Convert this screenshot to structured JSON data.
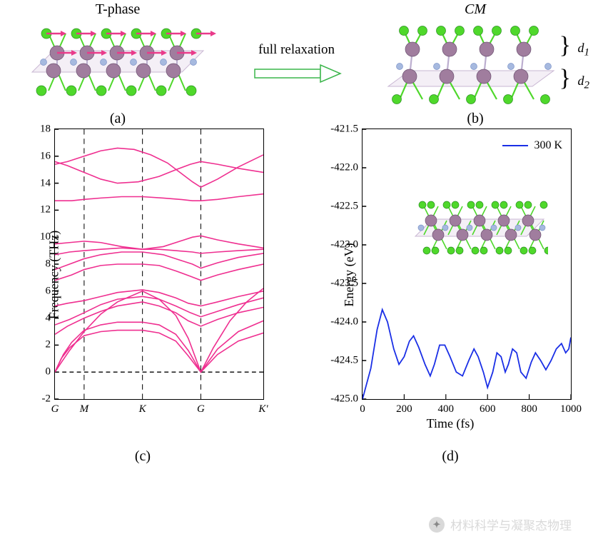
{
  "top": {
    "label_a_title": "T-phase",
    "label_b_title": "CM",
    "label_relaxation": "full relaxation",
    "subfig_a": "(a)",
    "subfig_b": "(b)",
    "d1": "d",
    "d1_sub": "1",
    "d2": "d",
    "d2_sub": "2",
    "atom_colors": {
      "green": "#4fd82b",
      "purple": "#a07d9e",
      "blue": "#a6b9df",
      "arrow": "#e93a8a",
      "relax_arrow_stroke": "#3ab54a"
    }
  },
  "chart_c": {
    "subfig": "(c)",
    "ylabel": "Frequency (THz)",
    "ylim": [
      -2,
      18
    ],
    "yticks": [
      -2,
      0,
      2,
      4,
      6,
      8,
      10,
      12,
      14,
      16,
      18
    ],
    "xticks": [
      {
        "pos": 0.0,
        "label": "G"
      },
      {
        "pos": 0.14,
        "label": "M"
      },
      {
        "pos": 0.42,
        "label": "K"
      },
      {
        "pos": 0.7,
        "label": "G"
      },
      {
        "pos": 1.0,
        "label": "K'"
      }
    ],
    "line_color": "#ef2f90",
    "line_width": 1.6,
    "bands": [
      [
        [
          0,
          0
        ],
        [
          0.03,
          1.0
        ],
        [
          0.07,
          1.8
        ],
        [
          0.14,
          2.7
        ],
        [
          0.22,
          3.0
        ],
        [
          0.3,
          3.1
        ],
        [
          0.42,
          3.1
        ],
        [
          0.5,
          2.9
        ],
        [
          0.58,
          2.3
        ],
        [
          0.64,
          1.2
        ],
        [
          0.7,
          0
        ],
        [
          0.78,
          1.3
        ],
        [
          0.88,
          2.3
        ],
        [
          1.0,
          2.9
        ]
      ],
      [
        [
          0,
          0
        ],
        [
          0.04,
          1.3
        ],
        [
          0.08,
          2.2
        ],
        [
          0.14,
          3.1
        ],
        [
          0.22,
          3.5
        ],
        [
          0.3,
          3.7
        ],
        [
          0.42,
          3.7
        ],
        [
          0.5,
          3.5
        ],
        [
          0.58,
          2.8
        ],
        [
          0.64,
          1.6
        ],
        [
          0.7,
          0
        ],
        [
          0.78,
          1.7
        ],
        [
          0.88,
          3.0
        ],
        [
          1.0,
          3.8
        ]
      ],
      [
        [
          0,
          0
        ],
        [
          0.03,
          0.7
        ],
        [
          0.07,
          1.6
        ],
        [
          0.14,
          3.0
        ],
        [
          0.22,
          4.3
        ],
        [
          0.3,
          5.2
        ],
        [
          0.42,
          6.0
        ],
        [
          0.5,
          5.4
        ],
        [
          0.58,
          4.2
        ],
        [
          0.64,
          2.5
        ],
        [
          0.7,
          0
        ],
        [
          0.76,
          1.8
        ],
        [
          0.84,
          3.8
        ],
        [
          0.92,
          5.2
        ],
        [
          1.0,
          6.2
        ]
      ],
      [
        [
          0,
          2.8
        ],
        [
          0.06,
          3.4
        ],
        [
          0.14,
          4.0
        ],
        [
          0.22,
          4.5
        ],
        [
          0.3,
          4.9
        ],
        [
          0.42,
          5.2
        ],
        [
          0.5,
          4.9
        ],
        [
          0.58,
          4.4
        ],
        [
          0.64,
          3.8
        ],
        [
          0.7,
          3.4
        ],
        [
          0.78,
          3.9
        ],
        [
          0.88,
          4.4
        ],
        [
          1.0,
          4.8
        ]
      ],
      [
        [
          0,
          3.5
        ],
        [
          0.07,
          3.9
        ],
        [
          0.14,
          4.4
        ],
        [
          0.22,
          5.0
        ],
        [
          0.3,
          5.4
        ],
        [
          0.42,
          5.6
        ],
        [
          0.5,
          5.4
        ],
        [
          0.58,
          4.9
        ],
        [
          0.65,
          4.4
        ],
        [
          0.7,
          4.1
        ],
        [
          0.78,
          4.5
        ],
        [
          0.88,
          5.0
        ],
        [
          1.0,
          5.5
        ]
      ],
      [
        [
          0,
          4.9
        ],
        [
          0.06,
          5.1
        ],
        [
          0.14,
          5.3
        ],
        [
          0.22,
          5.6
        ],
        [
          0.3,
          5.9
        ],
        [
          0.42,
          6.1
        ],
        [
          0.5,
          5.9
        ],
        [
          0.58,
          5.5
        ],
        [
          0.64,
          5.1
        ],
        [
          0.7,
          4.9
        ],
        [
          0.78,
          5.2
        ],
        [
          0.88,
          5.6
        ],
        [
          1.0,
          6.0
        ]
      ],
      [
        [
          0,
          6.8
        ],
        [
          0.08,
          7.2
        ],
        [
          0.14,
          7.6
        ],
        [
          0.22,
          7.9
        ],
        [
          0.3,
          8.0
        ],
        [
          0.42,
          8.0
        ],
        [
          0.5,
          7.9
        ],
        [
          0.58,
          7.5
        ],
        [
          0.65,
          7.1
        ],
        [
          0.7,
          6.8
        ],
        [
          0.78,
          7.2
        ],
        [
          0.88,
          7.6
        ],
        [
          1.0,
          8.0
        ]
      ],
      [
        [
          0,
          7.6
        ],
        [
          0.07,
          8.0
        ],
        [
          0.14,
          8.4
        ],
        [
          0.22,
          8.7
        ],
        [
          0.32,
          8.9
        ],
        [
          0.42,
          8.9
        ],
        [
          0.52,
          8.7
        ],
        [
          0.6,
          8.3
        ],
        [
          0.66,
          8.0
        ],
        [
          0.7,
          7.7
        ],
        [
          0.78,
          8.1
        ],
        [
          0.88,
          8.5
        ],
        [
          1.0,
          8.8
        ]
      ],
      [
        [
          0,
          8.7
        ],
        [
          0.07,
          8.9
        ],
        [
          0.14,
          9.0
        ],
        [
          0.22,
          9.1
        ],
        [
          0.32,
          9.2
        ],
        [
          0.42,
          9.1
        ],
        [
          0.5,
          9.1
        ],
        [
          0.58,
          9.0
        ],
        [
          0.66,
          8.9
        ],
        [
          0.7,
          8.8
        ],
        [
          0.78,
          8.9
        ],
        [
          0.88,
          9.0
        ],
        [
          1.0,
          9.1
        ]
      ],
      [
        [
          0,
          9.5
        ],
        [
          0.07,
          9.6
        ],
        [
          0.14,
          9.7
        ],
        [
          0.22,
          9.6
        ],
        [
          0.32,
          9.3
        ],
        [
          0.42,
          9.1
        ],
        [
          0.52,
          9.3
        ],
        [
          0.6,
          9.7
        ],
        [
          0.66,
          10.0
        ],
        [
          0.7,
          10.1
        ],
        [
          0.78,
          9.8
        ],
        [
          0.88,
          9.5
        ],
        [
          1.0,
          9.2
        ]
      ],
      [
        [
          0,
          12.7
        ],
        [
          0.08,
          12.7
        ],
        [
          0.14,
          12.8
        ],
        [
          0.22,
          12.9
        ],
        [
          0.32,
          13.0
        ],
        [
          0.42,
          13.0
        ],
        [
          0.52,
          12.9
        ],
        [
          0.6,
          12.8
        ],
        [
          0.66,
          12.7
        ],
        [
          0.7,
          12.7
        ],
        [
          0.78,
          12.8
        ],
        [
          0.88,
          13.0
        ],
        [
          1.0,
          13.2
        ]
      ],
      [
        [
          0,
          15.4
        ],
        [
          0.06,
          15.6
        ],
        [
          0.14,
          16.0
        ],
        [
          0.22,
          16.4
        ],
        [
          0.3,
          16.6
        ],
        [
          0.38,
          16.5
        ],
        [
          0.46,
          16.1
        ],
        [
          0.54,
          15.5
        ],
        [
          0.6,
          14.8
        ],
        [
          0.66,
          14.1
        ],
        [
          0.7,
          13.7
        ],
        [
          0.78,
          14.3
        ],
        [
          0.88,
          15.2
        ],
        [
          1.0,
          16.1
        ]
      ],
      [
        [
          0,
          15.6
        ],
        [
          0.06,
          15.3
        ],
        [
          0.14,
          14.8
        ],
        [
          0.22,
          14.3
        ],
        [
          0.3,
          14.0
        ],
        [
          0.4,
          14.1
        ],
        [
          0.5,
          14.5
        ],
        [
          0.58,
          15.0
        ],
        [
          0.65,
          15.4
        ],
        [
          0.7,
          15.6
        ],
        [
          0.78,
          15.4
        ],
        [
          0.88,
          15.1
        ],
        [
          1.0,
          14.8
        ]
      ]
    ]
  },
  "chart_d": {
    "subfig": "(d)",
    "ylabel": "Energy (eV)",
    "xlabel": "Time (fs)",
    "ylim": [
      -425.0,
      -421.5
    ],
    "yticks": [
      -425.0,
      -424.5,
      -424.0,
      -423.5,
      -423.0,
      -422.5,
      -422.0,
      -421.5
    ],
    "xlim": [
      0,
      1000
    ],
    "xticks": [
      0,
      200,
      400,
      600,
      800,
      1000
    ],
    "line_color": "#1a2fe6",
    "line_width": 1.8,
    "legend": "300 K",
    "series": [
      [
        0,
        -425.0
      ],
      [
        40,
        -424.6
      ],
      [
        70,
        -424.1
      ],
      [
        95,
        -423.84
      ],
      [
        120,
        -424.0
      ],
      [
        150,
        -424.35
      ],
      [
        175,
        -424.55
      ],
      [
        200,
        -424.45
      ],
      [
        225,
        -424.25
      ],
      [
        245,
        -424.18
      ],
      [
        270,
        -424.33
      ],
      [
        300,
        -424.55
      ],
      [
        325,
        -424.7
      ],
      [
        345,
        -424.55
      ],
      [
        370,
        -424.3
      ],
      [
        395,
        -424.3
      ],
      [
        420,
        -424.45
      ],
      [
        450,
        -424.65
      ],
      [
        480,
        -424.7
      ],
      [
        510,
        -424.5
      ],
      [
        535,
        -424.35
      ],
      [
        555,
        -424.45
      ],
      [
        580,
        -424.65
      ],
      [
        600,
        -424.85
      ],
      [
        625,
        -424.65
      ],
      [
        645,
        -424.4
      ],
      [
        665,
        -424.45
      ],
      [
        685,
        -424.65
      ],
      [
        700,
        -424.55
      ],
      [
        720,
        -424.35
      ],
      [
        740,
        -424.4
      ],
      [
        760,
        -424.65
      ],
      [
        785,
        -424.73
      ],
      [
        810,
        -424.52
      ],
      [
        830,
        -424.4
      ],
      [
        855,
        -424.5
      ],
      [
        880,
        -424.62
      ],
      [
        905,
        -424.5
      ],
      [
        930,
        -424.35
      ],
      [
        955,
        -424.28
      ],
      [
        975,
        -424.4
      ],
      [
        990,
        -424.35
      ],
      [
        1000,
        -424.2
      ]
    ]
  },
  "watermark": "材料科学与凝聚态物理"
}
